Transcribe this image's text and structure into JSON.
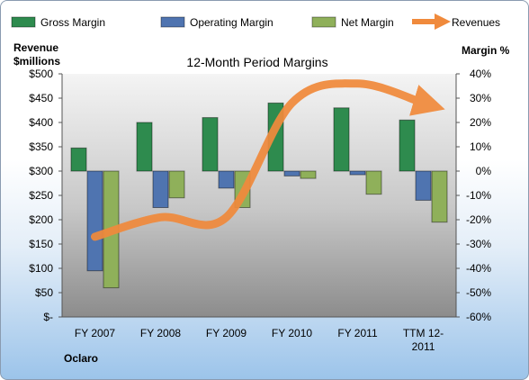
{
  "chart_data": {
    "type": "bar",
    "title": "12-Month Period Margins",
    "company": "Oclaro",
    "y_left_label_line1": "Revenue",
    "y_left_label_line2": "$millions",
    "y_right_label": "Margin %",
    "categories": [
      "FY 2007",
      "FY 2008",
      "FY 2009",
      "FY 2010",
      "FY 2011",
      "TTM 12-2011"
    ],
    "series": [
      {
        "name": "Gross Margin",
        "axis": "right",
        "color": "#2e8b4e",
        "values": [
          9.5,
          20,
          22,
          28,
          26,
          21
        ]
      },
      {
        "name": "Operating Margin",
        "axis": "right",
        "color": "#4f74b0",
        "values": [
          -41,
          -15,
          -7,
          -2,
          -1.5,
          -12
        ]
      },
      {
        "name": "Net Margin",
        "axis": "right",
        "color": "#8fb05a",
        "values": [
          -48,
          -11,
          -15,
          -3,
          -9.5,
          -21
        ]
      },
      {
        "name": "Revenues",
        "axis": "left",
        "type": "line",
        "color": "#f08a3c",
        "values": [
          165,
          205,
          205,
          440,
          480,
          440
        ]
      }
    ],
    "ylim_left": [
      0,
      500
    ],
    "yticks_left": [
      "$-",
      "$50",
      "$100",
      "$150",
      "$200",
      "$250",
      "$300",
      "$350",
      "$400",
      "$450",
      "$500"
    ],
    "ylim_right": [
      -60,
      40
    ],
    "yticks_right": [
      "-60%",
      "-50%",
      "-40%",
      "-30%",
      "-20%",
      "-10%",
      "0%",
      "10%",
      "20%",
      "30%",
      "40%"
    ],
    "legend_position": "top",
    "grid": false
  }
}
